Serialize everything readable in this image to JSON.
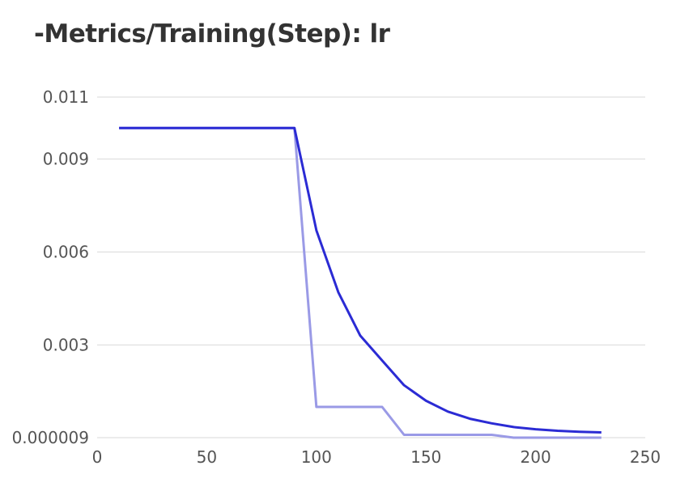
{
  "chart_data": {
    "type": "line",
    "title": "-Metrics/Training(Step): lr",
    "xlabel": "",
    "ylabel": "",
    "xlim": [
      0,
      250
    ],
    "ylim": [
      9e-06,
      0.011
    ],
    "x_ticks": [
      0,
      50,
      100,
      150,
      200,
      250
    ],
    "x_tick_labels": [
      "0",
      "50",
      "100",
      "150",
      "200",
      "250"
    ],
    "y_ticks": [
      9e-06,
      0.003,
      0.006,
      0.009,
      0.011
    ],
    "y_tick_labels": [
      "0.000009",
      "0.003",
      "0.006",
      "0.009",
      "0.011"
    ],
    "grid": "horizontal",
    "legend": "none",
    "series": [
      {
        "color": "#9a9ae6",
        "x": [
          10,
          90,
          100,
          110,
          120,
          130,
          140,
          150,
          160,
          170,
          180,
          190,
          200,
          210,
          220,
          230
        ],
        "y": [
          0.01,
          0.01,
          0.001,
          0.001,
          0.001,
          0.001,
          0.0001,
          0.0001,
          0.0001,
          0.0001,
          0.0001,
          1e-05,
          1e-05,
          1e-05,
          1e-05,
          1e-05
        ]
      },
      {
        "color": "#2b2bd4",
        "x": [
          10,
          90,
          100,
          110,
          120,
          130,
          140,
          150,
          160,
          170,
          180,
          190,
          200,
          210,
          220,
          230
        ],
        "y": [
          0.01,
          0.01,
          0.0067,
          0.0047,
          0.0033,
          0.0025,
          0.0017,
          0.0012,
          0.00085,
          0.00062,
          0.00047,
          0.00035,
          0.00028,
          0.00023,
          0.0002,
          0.00018
        ]
      }
    ]
  }
}
